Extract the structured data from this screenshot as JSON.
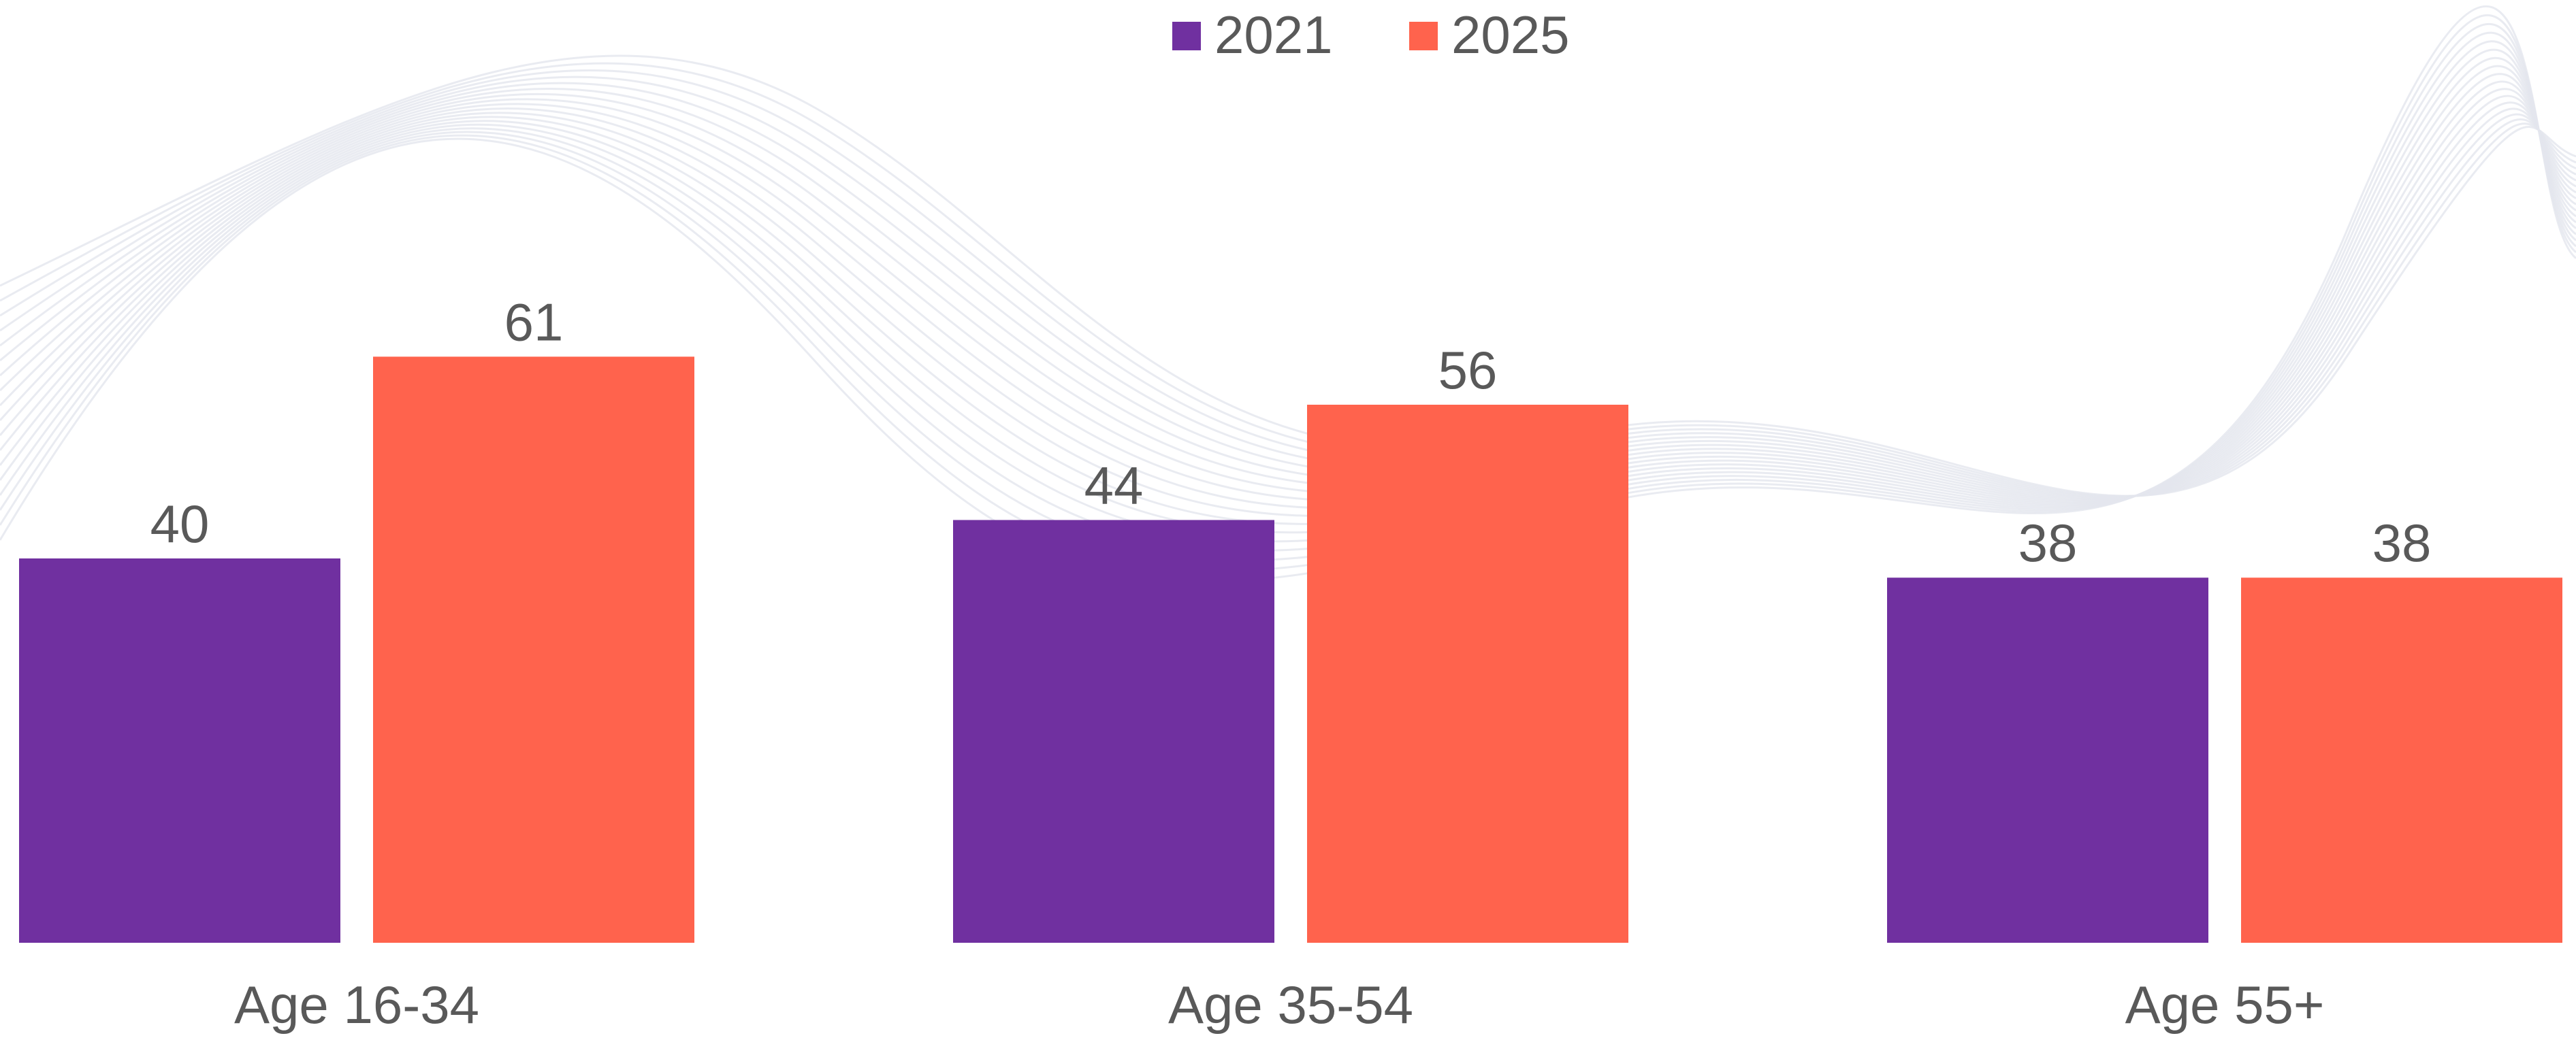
{
  "chart_data": {
    "type": "bar",
    "categories": [
      "Age 16-34",
      "Age 35-54",
      "Age 55+"
    ],
    "series": [
      {
        "name": "2021",
        "values": [
          40,
          44,
          38
        ],
        "color": "#7030a0"
      },
      {
        "name": "2025",
        "values": [
          61,
          56,
          38
        ],
        "color": "#ff634d"
      }
    ],
    "ylim": [
      0,
      70
    ],
    "grid": false,
    "legend_position": "top-center",
    "data_labels": true,
    "text_color": "#595959",
    "background_pattern": "faint-gray-wave-lines"
  }
}
